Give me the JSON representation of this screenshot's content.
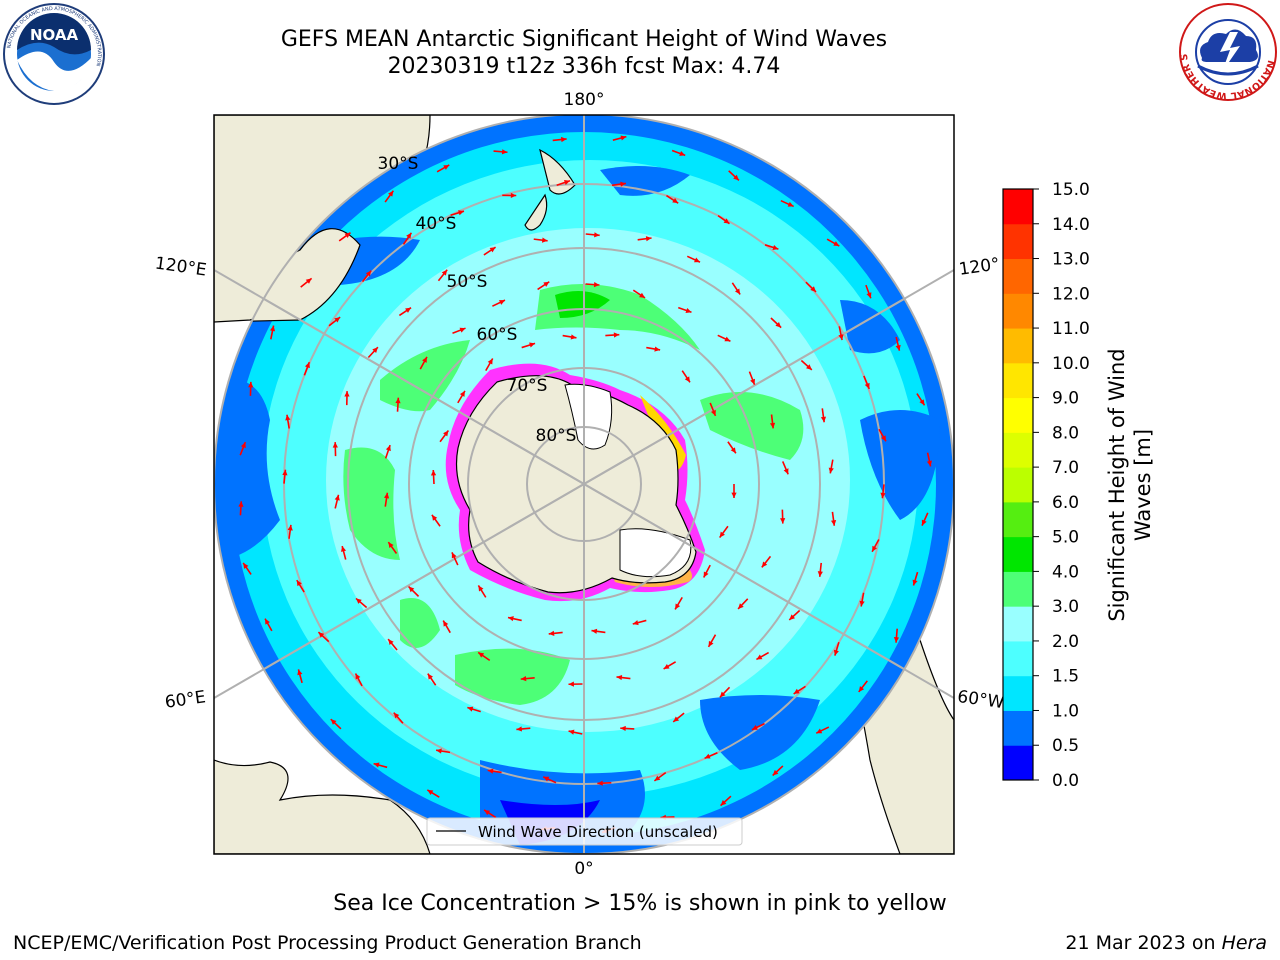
{
  "title": {
    "line1": "GEFS MEAN Antarctic Significant Height of Wind Waves",
    "line2": "20230319 t12z 336h fcst   Max: 4.74"
  },
  "logos": {
    "left": {
      "name": "noaa-logo",
      "text": "NOAA",
      "ring_text": "NATIONAL OCEANIC AND ATMOSPHERIC ADMINISTRATION"
    },
    "right": {
      "name": "nws-logo",
      "ring_text": "NATIONAL WEATHER SERVICE"
    }
  },
  "map": {
    "projection": "south polar stereographic",
    "longitude_labels": {
      "top": "180°",
      "bottom": "0°",
      "left_upper": "120°E",
      "left_lower": "60°E",
      "right_upper": "120°",
      "right_lower": "60°W"
    },
    "latitude_labels": [
      "30°S",
      "40°S",
      "50°S",
      "60°S",
      "70°S",
      "80°S"
    ],
    "legend": "Wind Wave Direction (unscaled)",
    "arrow_color": "#ff0000",
    "land_color": "#eeecd9",
    "ice_colors": [
      "#ff33ff",
      "#ffd700"
    ]
  },
  "colorbar": {
    "label_line1": "Significant Height of Wind",
    "label_line2": "Waves [m]",
    "ticks": [
      "0.0",
      "0.5",
      "1.0",
      "1.5",
      "2.0",
      "3.0",
      "4.0",
      "5.0",
      "6.0",
      "7.0",
      "8.0",
      "9.0",
      "10.0",
      "11.0",
      "12.0",
      "13.0",
      "14.0",
      "15.0"
    ],
    "colors": [
      "#0000ff",
      "#0073ff",
      "#00e6ff",
      "#4dffff",
      "#99ffff",
      "#4dff77",
      "#00e600",
      "#55ee11",
      "#bbff00",
      "#ddff00",
      "#ffff00",
      "#ffe600",
      "#ffbb00",
      "#ff8800",
      "#ff6600",
      "#ff3300",
      "#ff0000"
    ]
  },
  "footer": {
    "ice_note": "Sea Ice Concentration > 15% is shown in pink to yellow",
    "branch": "NCEP/EMC/Verification Post Processing Product Generation Branch",
    "date_prefix": "21 Mar 2023 on ",
    "machine": "Hera"
  }
}
